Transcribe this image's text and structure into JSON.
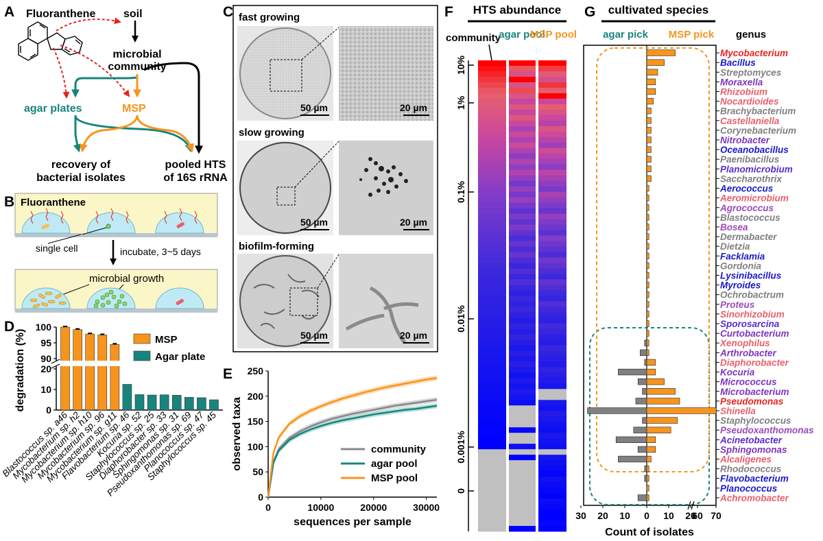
{
  "panel_letters": [
    "A",
    "B",
    "C",
    "D",
    "E",
    "F",
    "G"
  ],
  "panelA": {
    "compound": "Fluoranthene",
    "soil": "soil",
    "community": [
      "microbial",
      "community"
    ],
    "agar": "agar plates",
    "msp": "MSP",
    "recovery": [
      "recovery of",
      "bacterial isolates"
    ],
    "pooled": [
      "pooled HTS",
      "of 16S rRNA"
    ]
  },
  "panelB": {
    "compound": "Fluoranthene",
    "single_cell": "single cell",
    "incubate": "incubate, 3~5 days",
    "growth": "microbial growth"
  },
  "panelC": {
    "fast": "fast growing",
    "slow": "slow growing",
    "biofilm": "biofilm-forming",
    "scale50": "50 µm",
    "scale20": "20 µm"
  },
  "chart_data": [
    {
      "panel": "D",
      "type": "bar",
      "ylabel": "degradation (%)",
      "yticks": [
        "0",
        "10",
        "20",
        "90",
        "95",
        "100"
      ],
      "categories": [
        "Blastococcus sp. a46",
        "Mycobacterium sp. h2",
        "Mycobacterium sp. h10",
        "Mycobacterium sp. 96",
        "Mycobacterium sp. g11",
        "Flavobacterium sp. 46",
        "Kocuria sp. 52",
        "Staphylococcus sp. 25",
        "Diaphorobacter sp. 33",
        "Sphingomonas sp. 31",
        "Pseudoxanthomonas sp. 69",
        "Planococcus sp. 47",
        "Staphylococcus sp. 45"
      ],
      "series": [
        {
          "name": "MSP",
          "color": "#F7941D",
          "values": [
            100,
            99.2,
            97.8,
            97.5,
            94.5,
            null,
            null,
            null,
            null,
            null,
            null,
            null,
            null
          ]
        },
        {
          "name": "Agar plate",
          "color": "#17857D",
          "values": [
            null,
            null,
            null,
            null,
            null,
            12.5,
            7.5,
            7.3,
            7.4,
            7.2,
            6.2,
            6.0,
            5.0
          ]
        }
      ]
    },
    {
      "panel": "E",
      "type": "line",
      "xlabel": "sequences per sample",
      "ylabel": "observed taxa",
      "xlim": [
        0,
        32000
      ],
      "ylim": [
        0,
        250
      ],
      "xticks": [
        "0",
        "10000",
        "20000",
        "30000"
      ],
      "yticks": [
        "0",
        "50",
        "100",
        "150",
        "200",
        "250"
      ],
      "x": [
        0,
        1000,
        2000,
        4000,
        6000,
        8000,
        10000,
        12000,
        14000,
        16000,
        18000,
        20000,
        22000,
        24000,
        26000,
        28000,
        30000,
        32000
      ],
      "series": [
        {
          "name": "community",
          "color": "#888888",
          "values": [
            0,
            70,
            95,
            117,
            130,
            140,
            148,
            155,
            160,
            165,
            169,
            173,
            177,
            181,
            184,
            187,
            190,
            193
          ]
        },
        {
          "name": "agar pool",
          "color": "#17857D",
          "values": [
            0,
            68,
            92,
            113,
            125,
            134,
            141,
            147,
            152,
            156,
            160,
            164,
            167,
            170,
            173,
            175,
            178,
            181
          ]
        },
        {
          "name": "MSP pool",
          "color": "#F7941D",
          "values": [
            0,
            88,
            118,
            145,
            160,
            171,
            180,
            188,
            195,
            201,
            207,
            212,
            217,
            221,
            225,
            229,
            233,
            236
          ]
        }
      ]
    },
    {
      "panel": "F",
      "type": "heatmap",
      "title": "HTS abundance",
      "columns": [
        "community",
        "agar pool",
        "MSP pool"
      ],
      "yticks": [
        "10%",
        "1%",
        "0.1%",
        "0.01%",
        "0.001%",
        "0"
      ]
    },
    {
      "panel": "G",
      "type": "bar",
      "title": "cultivated species",
      "left_label": "agar pick",
      "right_label": "MSP pick",
      "genus_header": "genus",
      "xlabel": "Count of isolates",
      "xticks": [
        "30",
        "20",
        "10",
        "0",
        "10",
        "20",
        "60",
        "70"
      ],
      "categories": [
        "Mycobacterium",
        "Bacillus",
        "Streptomyces",
        "Moraxella",
        "Rhizobium",
        "Nocardioides",
        "Brachybacterium",
        "Castellaniella",
        "Corynebacterium",
        "Nitrobacter",
        "Oceanobacillus",
        "Paenibacillus",
        "Planomicrobium",
        "Saccharothrix",
        "Aerococcus",
        "Aeromicrobium",
        "Agrococcus",
        "Blastococcus",
        "Bosea",
        "Dermabacter",
        "Dietzia",
        "Facklamia",
        "Gordonia",
        "Lysinibacillus",
        "Myroides",
        "Ochrobactrum",
        "Proteus",
        "Sinorhizobium",
        "Sporosarcina",
        "Curtobacterium",
        "Xenophilus",
        "Arthrobacter",
        "Diaphorobacter",
        "Kocuria",
        "Micrococcus",
        "Microbacterium",
        "Pseudomonas",
        "Shinella",
        "Staphylococcus",
        "Pseudoxanthomonas",
        "Acinetobacter",
        "Sphingomonas",
        "Alcaligenes",
        "Rhodococcus",
        "Flavobacterium",
        "Planococcus",
        "Achromobacter"
      ],
      "genus_colors": [
        "#E8231F",
        "#1A1ACC",
        "#808080",
        "#7C35BC",
        "#E8606C",
        "#E8606C",
        "#808080",
        "#E8606C",
        "#808080",
        "#7C35BC",
        "#1A1ACC",
        "#808080",
        "#5A2BCC",
        "#808080",
        "#1A1ACC",
        "#E8606C",
        "#9B4AB8",
        "#808080",
        "#9B4AB8",
        "#808080",
        "#808080",
        "#1A1ACC",
        "#808080",
        "#1A1ACC",
        "#1A1ACC",
        "#808080",
        "#9B4AB8",
        "#E8606C",
        "#5A2BCC",
        "#7C35BC",
        "#E8606C",
        "#7C35BC",
        "#E8606C",
        "#7C35BC",
        "#7C35BC",
        "#7C35BC",
        "#E8231F",
        "#E8606C",
        "#808080",
        "#9B4AB8",
        "#5A2BCC",
        "#7C35BC",
        "#E8606C",
        "#808080",
        "#1A1ACC",
        "#1A1ACC",
        "#E8606C"
      ],
      "series": [
        {
          "name": "agar pick",
          "color": "#808080",
          "values": [
            0,
            0,
            0,
            0,
            0,
            0,
            0,
            0,
            0,
            0,
            0,
            0,
            0,
            0,
            0,
            0,
            0,
            0,
            0,
            0,
            0,
            0,
            0,
            0,
            0,
            0,
            0,
            0,
            0,
            0,
            1,
            3,
            1,
            13,
            4,
            2,
            5,
            27,
            2,
            6,
            14,
            4,
            13,
            1,
            1,
            0,
            4
          ]
        },
        {
          "name": "MSP pick",
          "color": "#F7941D",
          "values": [
            13,
            8,
            5,
            4,
            4,
            3,
            2,
            2,
            2,
            2,
            2,
            2,
            2,
            2,
            1,
            1,
            1,
            1,
            1,
            1,
            1,
            1,
            1,
            1,
            1,
            1,
            1,
            1,
            1,
            1,
            1,
            1,
            4,
            4,
            8,
            13,
            15,
            66,
            14,
            11,
            4,
            4,
            2,
            1,
            1,
            1,
            1
          ]
        }
      ]
    }
  ]
}
